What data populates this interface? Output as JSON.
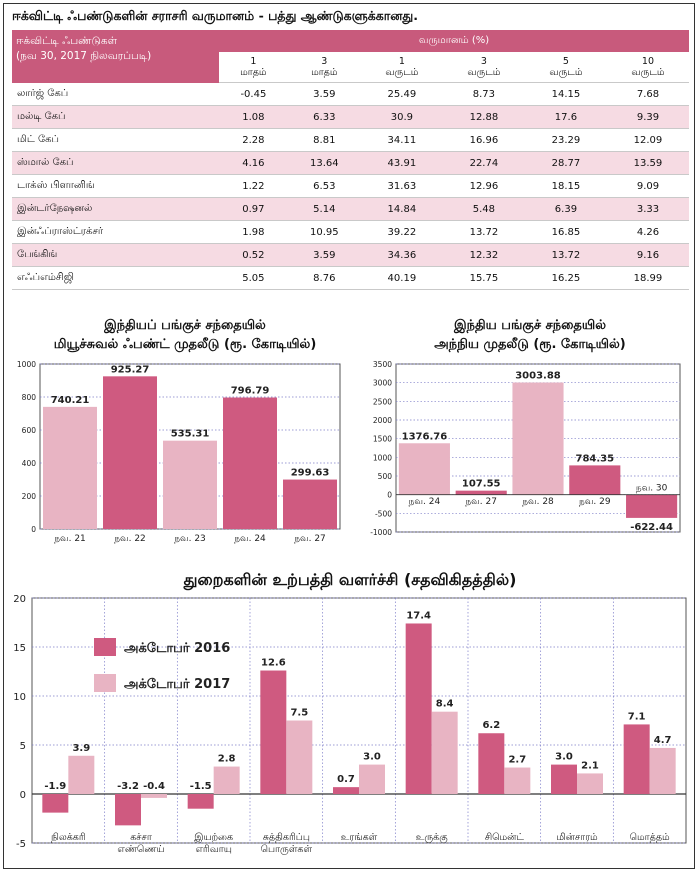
{
  "page_title": "ஈக்விட்டி ஃபண்டுகளின் சராசரி வருமானம் - பத்து ஆண்டுகளுக்கானது.",
  "table": {
    "header_line1": "ஈக்விட்டி ஃபண்டுகள்",
    "header_line2": "(நவ 30, 2017 நிலவரப்படி)",
    "group_header": "வருமானம் (%)",
    "periods": [
      {
        "num": "1",
        "unit": "மாதம்"
      },
      {
        "num": "3",
        "unit": "மாதம்"
      },
      {
        "num": "1",
        "unit": "வருடம்"
      },
      {
        "num": "3",
        "unit": "வருடம்"
      },
      {
        "num": "5",
        "unit": "வருடம்"
      },
      {
        "num": "10",
        "unit": "வருடம்"
      }
    ],
    "rows": [
      {
        "name": "லார்ஜ் கேப்",
        "values": [
          "-0.45",
          "3.59",
          "25.49",
          "8.73",
          "14.15",
          "7.68"
        ]
      },
      {
        "name": "மல்டி கேப்",
        "values": [
          "1.08",
          "6.33",
          "30.9",
          "12.88",
          "17.6",
          "9.39"
        ]
      },
      {
        "name": "மிட் கேப்",
        "values": [
          "2.28",
          "8.81",
          "34.11",
          "16.96",
          "23.29",
          "12.09"
        ]
      },
      {
        "name": "ஸ்மால் கேப்",
        "values": [
          "4.16",
          "13.64",
          "43.91",
          "22.74",
          "28.77",
          "13.59"
        ]
      },
      {
        "name": "டாக்ஸ் பிளானிங்",
        "values": [
          "1.22",
          "6.53",
          "31.63",
          "12.96",
          "18.15",
          "9.09"
        ]
      },
      {
        "name": "இன்டர்நேஷனல்",
        "values": [
          "0.97",
          "5.14",
          "14.84",
          "5.48",
          "6.39",
          "3.33"
        ]
      },
      {
        "name": "இன்ஃப்ராஸ்ட்ரக்சர்",
        "values": [
          "1.98",
          "10.95",
          "39.22",
          "13.72",
          "16.85",
          "4.26"
        ]
      },
      {
        "name": "பேங்கிங்",
        "values": [
          "0.52",
          "3.59",
          "34.36",
          "12.32",
          "13.72",
          "9.16"
        ]
      },
      {
        "name": "எஃப்எம்சிஜி",
        "values": [
          "5.05",
          "8.76",
          "40.19",
          "15.75",
          "16.25",
          "18.99"
        ]
      }
    ]
  },
  "chart_data": [
    {
      "type": "bar",
      "title_line1": "இந்தியப் பங்குச் சந்தையில்",
      "title_line2": "மியூச்சுவல் ஃபண்ட் முதலீடு (ரூ. கோடியில்)",
      "categories": [
        "நவ. 21",
        "நவ. 22",
        "நவ. 23",
        "நவ. 24",
        "நவ. 27"
      ],
      "values": [
        740.21,
        925.27,
        535.31,
        796.79,
        299.63
      ],
      "labels": [
        "740.21",
        "925.27",
        "535.31",
        "796.79",
        "299.63"
      ],
      "colors": [
        "#e8b4c3",
        "#cf5a80",
        "#e8b4c3",
        "#cf5a80",
        "#cf5a80"
      ],
      "ylim": [
        0,
        1000
      ],
      "yticks": [
        "0",
        "200",
        "400",
        "600",
        "800",
        "1000"
      ],
      "grid": true
    },
    {
      "type": "bar",
      "title_line1": "இந்திய பங்குச் சந்தையில்",
      "title_line2": "அந்நிய முதலீடு (ரூ. கோடியில்)",
      "categories": [
        "நவ. 24",
        "நவ. 27",
        "நவ. 28",
        "நவ. 29",
        "நவ. 30"
      ],
      "values": [
        1376.76,
        107.55,
        3003.88,
        784.35,
        -622.44
      ],
      "labels": [
        "1376.76",
        "107.55",
        "3003.88",
        "784.35",
        "-622.44"
      ],
      "colors": [
        "#e8b4c3",
        "#cf5a80",
        "#e8b4c3",
        "#cf5a80",
        "#cf5a80"
      ],
      "ylim": [
        -1000,
        3500
      ],
      "yticks": [
        "-1000",
        "-500",
        "0",
        "500",
        "1000",
        "1500",
        "2000",
        "2500",
        "3000",
        "3500"
      ],
      "grid": true
    },
    {
      "type": "bar",
      "title": "துறைகளின் உற்பத்தி வளர்ச்சி (சதவிகிதத்தில்)",
      "categories": [
        [
          "நிலக்கரி"
        ],
        [
          "கச்சா",
          "எண்ணெய்"
        ],
        [
          "இயற்கை",
          "எரிவாயு"
        ],
        [
          "சுத்திகரிப்பு",
          "பொருள்கள்"
        ],
        [
          "உரங்கள்"
        ],
        [
          "உருக்கு"
        ],
        [
          "சிமென்ட்"
        ],
        [
          "மின்சாரம்"
        ],
        [
          "மொத்தம்"
        ]
      ],
      "series": [
        {
          "name": "அக்டோபர் 2016",
          "color": "#cf5a80",
          "values": [
            -1.9,
            -3.2,
            -1.5,
            12.6,
            0.7,
            17.4,
            6.2,
            3.0,
            7.1
          ],
          "labels": [
            "-1.9",
            "-3.2",
            "-1.5",
            "12.6",
            "0.7",
            "17.4",
            "6.2",
            "3.0",
            "7.1"
          ]
        },
        {
          "name": "அக்டோபர் 2017",
          "color": "#e8b4c3",
          "values": [
            3.9,
            -0.4,
            2.8,
            7.5,
            3.0,
            8.4,
            2.7,
            2.1,
            4.7
          ],
          "labels": [
            "3.9",
            "-0.4",
            "2.8",
            "7.5",
            "3.0",
            "8.4",
            "2.7",
            "2.1",
            "4.7"
          ]
        }
      ],
      "ylim": [
        -5,
        20
      ],
      "yticks": [
        "-5",
        "0",
        "5",
        "10",
        "15",
        "20"
      ],
      "legend": "top-left",
      "grid": true
    }
  ]
}
